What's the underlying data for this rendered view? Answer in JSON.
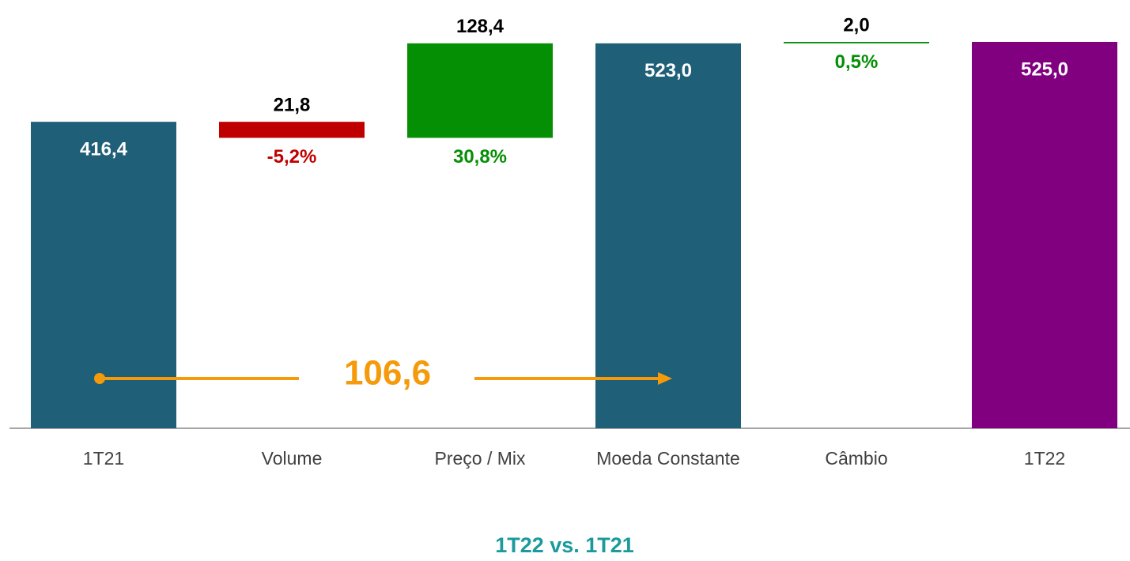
{
  "chart_data": {
    "type": "waterfall",
    "title": "1T22 vs. 1T21",
    "categories": [
      "1T21",
      "Volume",
      "Preço / Mix",
      "Moeda Constante",
      "Câmbio",
      "1T22"
    ],
    "measure": [
      "absolute",
      "relative",
      "relative",
      "absolute",
      "relative",
      "absolute"
    ],
    "values": [
      416.4,
      -21.8,
      128.4,
      523.0,
      2.0,
      525.0
    ],
    "value_labels": [
      "416,4",
      "21,8",
      "128,4",
      "523,0",
      "2,0",
      "525,0"
    ],
    "percent_values": [
      null,
      -5.2,
      30.8,
      null,
      0.5,
      null
    ],
    "percent_labels": [
      null,
      "-5,2%",
      "30,8%",
      null,
      "0,5%",
      null
    ],
    "colors": [
      "#1f5f78",
      "#c00000",
      "#058f05",
      "#1f5f78",
      "#058f05",
      "#800080"
    ],
    "annotation": "106,6",
    "annotation_color": "#f59a0a",
    "title_color": "#1a9a9c"
  }
}
